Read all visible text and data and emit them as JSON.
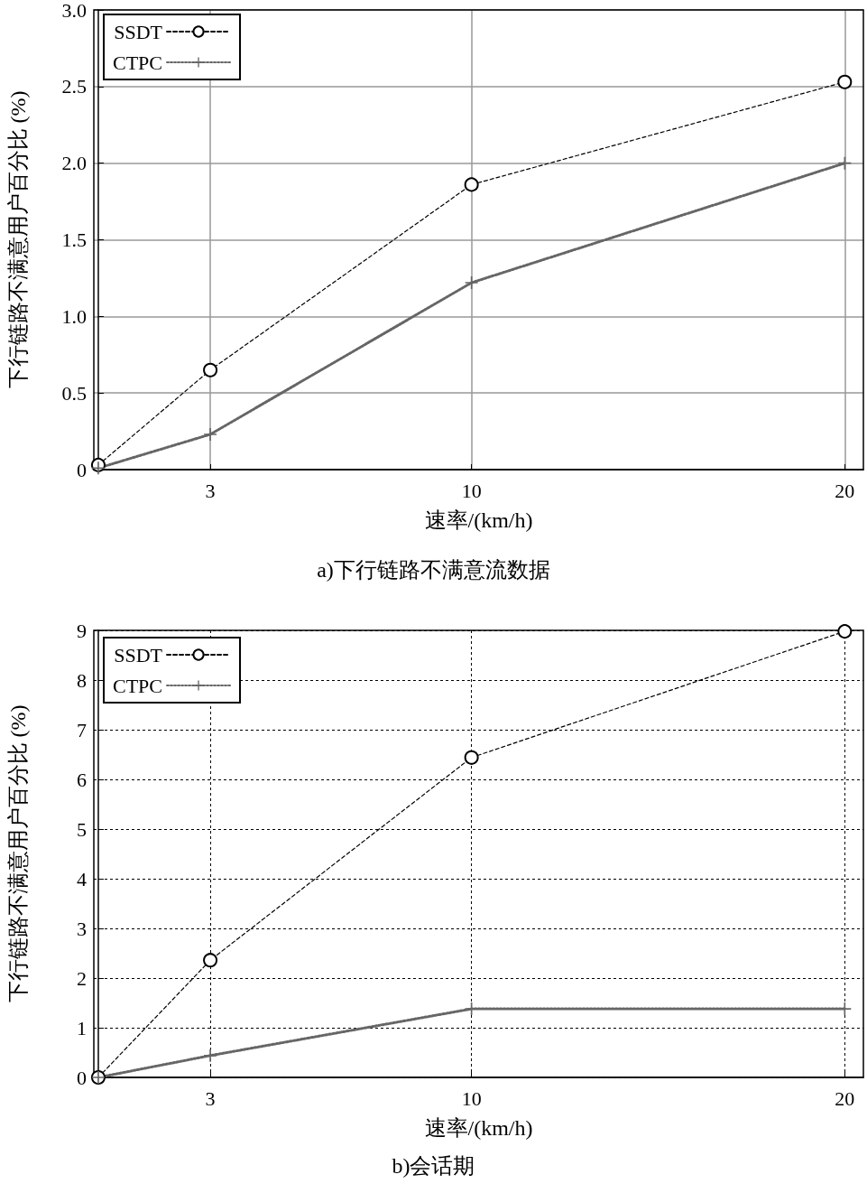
{
  "chart_data": [
    {
      "type": "line",
      "title": "a)下行链路不满意流数据",
      "xlabel": "速率/(km/h)",
      "ylabel": "下行链路不满意用户百分比 (%)",
      "x": [
        0,
        3,
        10,
        20
      ],
      "series": [
        {
          "name": "SSDT",
          "color": "#000000",
          "values": [
            0.03,
            0.65,
            1.86,
            2.53
          ],
          "marker": "circle",
          "line_style": "dashed"
        },
        {
          "name": "CTPC",
          "color": "#666666",
          "values": [
            0.01,
            0.23,
            1.22,
            2.0
          ],
          "marker": "cross",
          "line_style": "dotted"
        }
      ],
      "xlim": [
        -0.12,
        20.5
      ],
      "xticks": [
        3,
        10,
        20
      ],
      "ylim": [
        0,
        3
      ],
      "yticks": [
        0,
        0.5,
        {
          "value": 1,
          "label": "1.0"
        },
        1.5,
        {
          "value": 2,
          "label": "2.0"
        },
        2.5,
        {
          "value": 3,
          "label": "3.0"
        }
      ],
      "grid": true,
      "legend": "top left"
    },
    {
      "type": "line",
      "title": "b)会话期",
      "xlabel": "速率/(km/h)",
      "ylabel": "下行链路不满意用户百分比 (%)",
      "x": [
        0,
        3,
        10,
        20
      ],
      "series": [
        {
          "name": "SSDT",
          "color": "#000000",
          "values": [
            0,
            2.36,
            6.44,
            8.98
          ],
          "marker": "circle",
          "line_style": "dashed"
        },
        {
          "name": "CTPC",
          "color": "#666666",
          "values": [
            0,
            0.44,
            1.38,
            1.38
          ],
          "marker": "cross",
          "line_style": "dotted"
        }
      ],
      "xlim": [
        -0.12,
        20.5
      ],
      "xticks": [
        3,
        10,
        20
      ],
      "ylim": [
        0,
        9
      ],
      "yticks": [
        0,
        1,
        2,
        3,
        4,
        5,
        6,
        7,
        8,
        9
      ],
      "grid": true,
      "legend": "top left"
    }
  ]
}
